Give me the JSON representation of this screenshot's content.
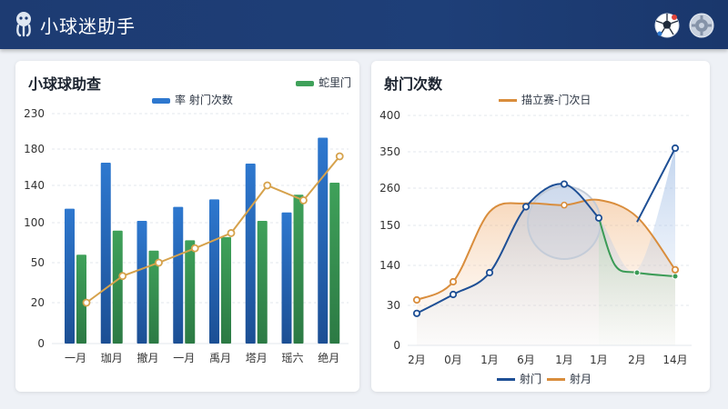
{
  "app": {
    "title": "小球迷助手"
  },
  "chart_data": [
    {
      "type": "bar",
      "title": "小球球助查",
      "categories": [
        "一月",
        "珈月",
        "撤月",
        "一月",
        "禹月",
        "塔月",
        "瑶六",
        "绝月"
      ],
      "yticks": [
        "0",
        "20",
        "50",
        "100",
        "140",
        "180",
        "230"
      ],
      "series": [
        {
          "name": "射门次数",
          "kind": "bar",
          "color": "#2e78cf",
          "values": [
            115,
            165,
            102,
            117,
            125,
            164,
            111,
            196
          ]
        },
        {
          "name": "",
          "kind": "bar",
          "color": "#3fa15a",
          "values": [
            60,
            90,
            65,
            78,
            82,
            102,
            130,
            143
          ]
        },
        {
          "name": "",
          "kind": "line",
          "color": "#d6a24c",
          "values": [
            20,
            40,
            50,
            68,
            87,
            140,
            124,
            172
          ]
        }
      ],
      "legend": [
        {
          "label": "率 射门次数",
          "color": "#2e78cf"
        },
        {
          "label": "蛇里门",
          "color": "#3fa15a"
        }
      ],
      "legend_position": "top",
      "grid": true
    },
    {
      "type": "line",
      "title": "射门次数",
      "categories": [
        "2月",
        "0月",
        "1月",
        "6月",
        "1月",
        "1月",
        "2月",
        "14月"
      ],
      "yticks": [
        "0",
        "30",
        "140",
        "150",
        "260",
        "350",
        "400"
      ],
      "series": [
        {
          "name": "射门",
          "color": "#1e4f95",
          "values": [
            24,
            60,
            120,
            205,
            270,
            172,
            128,
            355
          ],
          "extra": [
            {
              "after": 5,
              "x": 6.4,
              "y": 120
            },
            {
              "after": 6,
              "x": 7.0,
              "y": 110
            }
          ]
        },
        {
          "name": "射月",
          "color": "#d98d3c",
          "values": [
            45,
            95,
            190,
            215,
            210,
            225,
            175,
            128
          ]
        }
      ],
      "legend_top": {
        "label": "描立赛-门次日",
        "color": "#d98d3c"
      },
      "legend": [
        {
          "label": "射门",
          "color": "#1e4f95"
        },
        {
          "label": "射月",
          "color": "#d98d3c"
        }
      ],
      "grid": true
    }
  ]
}
